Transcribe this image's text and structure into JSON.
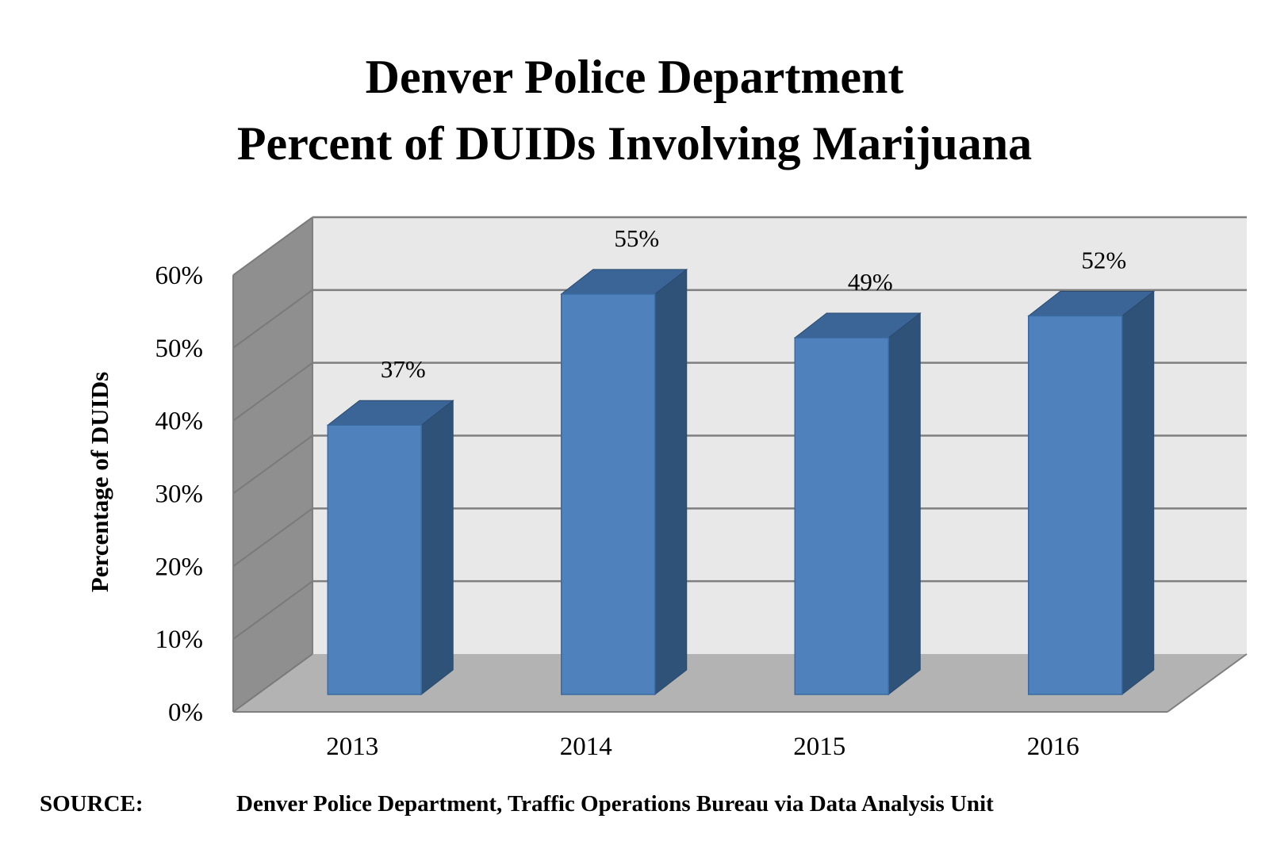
{
  "chart_data": {
    "type": "bar",
    "title_lines": [
      "Denver Police Department",
      "Percent of DUIDs Involving Marijuana"
    ],
    "categories": [
      "2013",
      "2014",
      "2015",
      "2016"
    ],
    "values": [
      37,
      55,
      49,
      52
    ],
    "data_labels": [
      "37%",
      "55%",
      "49%",
      "52%"
    ],
    "ylabel": "Percentage of DUIDs",
    "xlabel": "",
    "ylim": [
      0,
      60
    ],
    "yticks": [
      "0%",
      "10%",
      "20%",
      "30%",
      "40%",
      "50%",
      "60%"
    ],
    "grid": true,
    "style": "3d-column",
    "colors": {
      "bar_front": "#4f81bd",
      "bar_side": "#2f5378",
      "bar_top": "#3b6596",
      "back_wall": "#e8e8e8",
      "side_wall": "#8f8f8f",
      "floor": "#b3b3b3"
    }
  },
  "source": {
    "label": "SOURCE:",
    "text": "Denver Police Department, Traffic Operations Bureau via Data Analysis Unit"
  }
}
